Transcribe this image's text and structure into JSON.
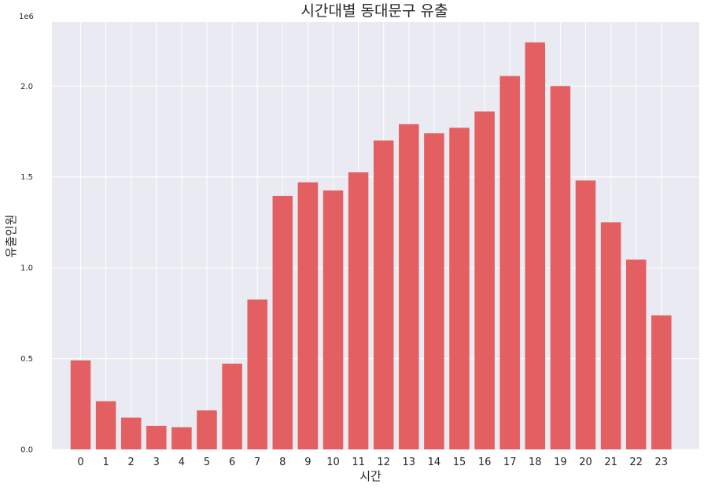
{
  "chart_data": {
    "type": "bar",
    "title": "시간대별 동대문구 유출",
    "xlabel": "시간",
    "ylabel": "유출인원",
    "y_offset_label": "1e6",
    "y_scale": 1000000,
    "categories": [
      "0",
      "1",
      "2",
      "3",
      "4",
      "5",
      "6",
      "7",
      "8",
      "9",
      "10",
      "11",
      "12",
      "13",
      "14",
      "15",
      "16",
      "17",
      "18",
      "19",
      "20",
      "21",
      "22",
      "23"
    ],
    "values": [
      490000,
      265000,
      175000,
      130000,
      122000,
      215000,
      472000,
      825000,
      1395000,
      1470000,
      1425000,
      1525000,
      1700000,
      1790000,
      1740000,
      1770000,
      1860000,
      2055000,
      2240000,
      2000000,
      1480000,
      1250000,
      1045000,
      738000
    ],
    "yticks": [
      "0.0",
      "0.5",
      "1.0",
      "1.5",
      "2.0"
    ],
    "ylim": [
      0,
      2352000
    ],
    "bar_color": "#e35f61",
    "background_color": "#eaeaf2",
    "grid": true
  }
}
